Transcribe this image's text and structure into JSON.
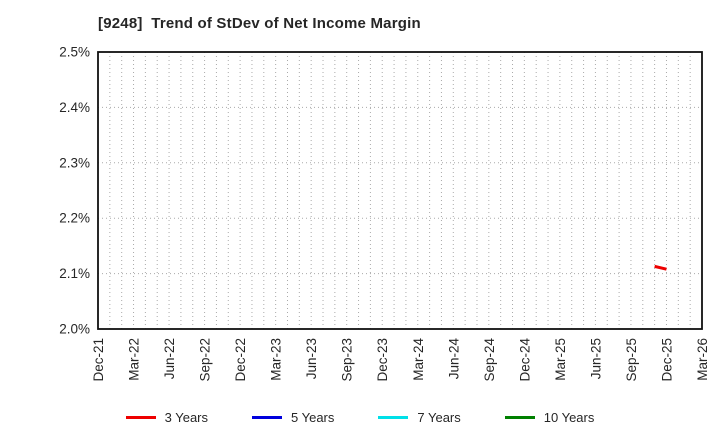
{
  "chart_data": {
    "type": "line",
    "title": "[9248]  Trend of StDev of Net Income Margin",
    "x_axis": {
      "unit": "month",
      "start": "Dec-21",
      "end": "Mar-26",
      "tick_labels": [
        "Dec-21",
        "Mar-22",
        "Jun-22",
        "Sep-22",
        "Dec-22",
        "Mar-23",
        "Jun-23",
        "Sep-23",
        "Dec-23",
        "Mar-24",
        "Jun-24",
        "Sep-24",
        "Dec-24",
        "Mar-25",
        "Jun-25",
        "Sep-25",
        "Dec-25",
        "Mar-26"
      ]
    },
    "y_axis": {
      "min": 2.0,
      "max": 2.5,
      "unit": "%",
      "ticks": [
        {
          "v": 2.0,
          "label": "2.0%"
        },
        {
          "v": 2.1,
          "label": "2.1%"
        },
        {
          "v": 2.2,
          "label": "2.2%"
        },
        {
          "v": 2.3,
          "label": "2.3%"
        },
        {
          "v": 2.4,
          "label": "2.4%"
        },
        {
          "v": 2.5,
          "label": "2.5%"
        }
      ]
    },
    "grid": true,
    "legend_position": "bottom",
    "series": [
      {
        "name": "3 Years",
        "color": "#ee0000",
        "points": [
          {
            "x": "Nov-25",
            "y": 2.113
          },
          {
            "x": "Dec-25",
            "y": 2.108
          }
        ]
      },
      {
        "name": "5 Years",
        "color": "#0000dd",
        "points": []
      },
      {
        "name": "7 Years",
        "color": "#00e0e8",
        "points": []
      },
      {
        "name": "10 Years",
        "color": "#008000",
        "points": []
      }
    ],
    "colors": {
      "grid": "#aaaaaa",
      "axis": "#111111",
      "text": "#262626"
    }
  }
}
